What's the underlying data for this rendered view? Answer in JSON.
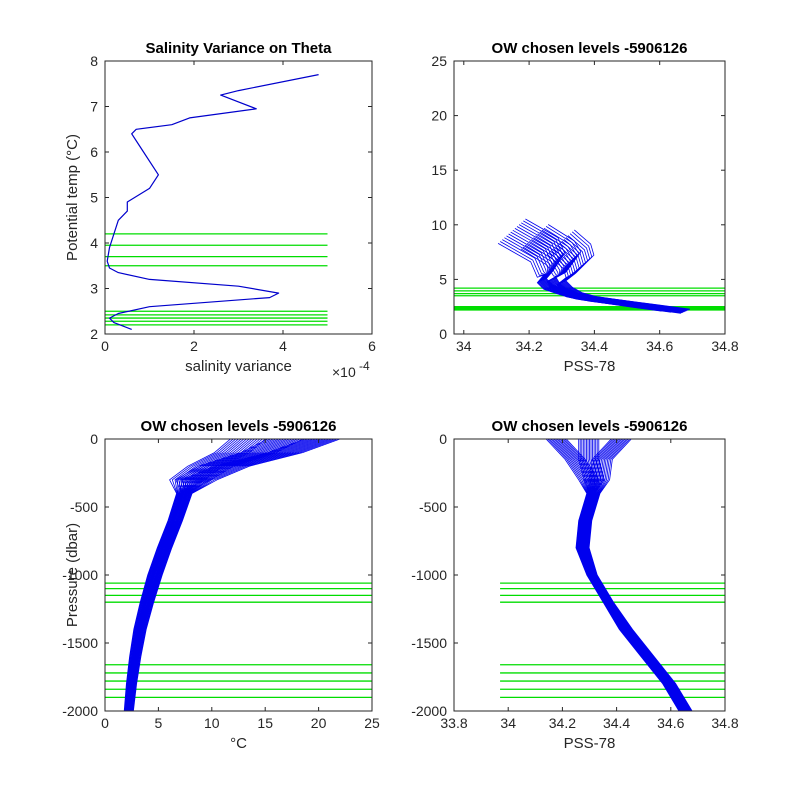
{
  "chart_data": [
    {
      "id": "p1",
      "type": "line",
      "title": "Salinity Variance on Theta",
      "xlabel": "salinity variance",
      "ylabel": "Potential temp (°C)",
      "xlim": [
        0,
        0.0006
      ],
      "ylim": [
        2,
        8
      ],
      "xticks": [
        0,
        0.0002,
        0.0004,
        0.0006
      ],
      "xticklabels": [
        "0",
        "2",
        "4",
        "6"
      ],
      "x_exponent_label": "×10",
      "x_exponent": "-4",
      "yticks": [
        2,
        3,
        4,
        5,
        6,
        7,
        8
      ],
      "series": [
        {
          "color": "#0000cc",
          "x": [
            0.00048,
            0.0003,
            0.00026,
            0.00034,
            0.00019,
            0.00015,
            7e-05,
            6e-05,
            8e-05,
            0.00012,
            0.0001,
            5e-05,
            5e-05,
            3e-05,
            2e-05,
            1e-05,
            5e-06,
            1e-05,
            3e-05,
            0.0001,
            0.0003,
            0.00039,
            0.00037,
            0.0001,
            3e-05,
            1e-05,
            2e-05,
            6e-05
          ],
          "y": [
            7.7,
            7.35,
            7.25,
            6.95,
            6.75,
            6.6,
            6.5,
            6.4,
            6.1,
            5.5,
            5.2,
            4.9,
            4.7,
            4.5,
            4.2,
            3.9,
            3.6,
            3.45,
            3.35,
            3.2,
            3.05,
            2.9,
            2.8,
            2.6,
            2.45,
            2.35,
            2.25,
            2.1
          ]
        }
      ],
      "reference_lines": {
        "orientation": "horizontal",
        "color": "#00dd00",
        "values": [
          4.2,
          3.95,
          3.7,
          3.5,
          2.5,
          2.42,
          2.35,
          2.28,
          2.2
        ],
        "from": 0,
        "to": 0.0005
      }
    },
    {
      "id": "p2",
      "type": "line",
      "title": "OW chosen levels -5906126",
      "xlabel": "PSS-78",
      "ylabel": "",
      "xlim": [
        33.97,
        34.8
      ],
      "ylim": [
        0,
        25
      ],
      "xticks": [
        34,
        34.2,
        34.4,
        34.6,
        34.8
      ],
      "xticklabels": [
        "34",
        "34.2",
        "34.4",
        "34.6",
        "34.8"
      ],
      "yticks": [
        0,
        5,
        10,
        15,
        20,
        25
      ],
      "series": [
        {
          "color": "#0000ee",
          "x": [
            34.65,
            34.55,
            34.45,
            34.38,
            34.33,
            34.3,
            34.28,
            34.27,
            34.3,
            34.32,
            34.3,
            34.22
          ],
          "y": [
            2.2,
            2.6,
            3.0,
            3.3,
            3.6,
            4.0,
            4.5,
            5.0,
            5.5,
            6.5,
            7.5,
            9.0
          ]
        },
        {
          "color": "#0000ee",
          "x": [
            34.68,
            34.58,
            34.48,
            34.4,
            34.35,
            34.32,
            34.3,
            34.33,
            34.36,
            34.35,
            34.3
          ],
          "y": [
            2.1,
            2.5,
            2.9,
            3.2,
            3.6,
            4.1,
            4.7,
            5.4,
            6.2,
            7.2,
            8.5
          ]
        },
        {
          "color": "#0000ee",
          "x": [
            34.62,
            34.52,
            34.43,
            34.36,
            34.31,
            34.26,
            34.24,
            34.26,
            34.27,
            34.25,
            34.15
          ],
          "y": [
            2.3,
            2.7,
            3.1,
            3.4,
            3.8,
            4.3,
            4.9,
            5.6,
            6.4,
            7.8,
            9.5
          ]
        }
      ],
      "reference_lines": {
        "orientation": "horizontal",
        "color": "#00dd00",
        "values": [
          4.2,
          3.95,
          3.7,
          3.5,
          2.5,
          2.42,
          2.35,
          2.28,
          2.2
        ],
        "from": 33.97,
        "to": 34.8
      }
    },
    {
      "id": "p3",
      "type": "line",
      "title": "OW chosen levels -5906126",
      "xlabel": "°C",
      "ylabel": "Pressure (dbar)",
      "xlim": [
        0,
        25
      ],
      "ylim": [
        -2000,
        0
      ],
      "xticks": [
        0,
        5,
        10,
        15,
        20,
        25
      ],
      "xticklabels": [
        "0",
        "5",
        "10",
        "15",
        "20",
        "25"
      ],
      "yticks": [
        -2000,
        -1500,
        -1000,
        -500,
        0
      ],
      "series": [
        {
          "color": "#0000ee",
          "x": [
            2.1,
            2.3,
            2.6,
            3.0,
            3.6,
            4.3,
            5.2,
            6.2,
            7.0,
            7.8,
            9.5,
            12.0,
            13.5
          ],
          "y": [
            -2000,
            -1800,
            -1600,
            -1400,
            -1200,
            -1000,
            -800,
            -600,
            -400,
            -300,
            -200,
            -100,
            0
          ]
        },
        {
          "color": "#0000ee",
          "x": [
            2.4,
            2.7,
            3.1,
            3.6,
            4.3,
            5.1,
            6.0,
            7.0,
            7.9,
            9.0,
            12.0,
            17.0,
            20.5
          ],
          "y": [
            -2000,
            -1800,
            -1600,
            -1400,
            -1200,
            -1000,
            -800,
            -600,
            -400,
            -300,
            -200,
            -100,
            0
          ]
        },
        {
          "color": "#0000ee",
          "x": [
            2.25,
            2.5,
            2.85,
            3.3,
            3.95,
            4.7,
            5.6,
            6.6,
            7.45,
            8.4,
            10.5,
            14.5,
            17.0
          ],
          "y": [
            -2000,
            -1800,
            -1600,
            -1400,
            -1200,
            -1000,
            -800,
            -600,
            -400,
            -300,
            -200,
            -100,
            0
          ]
        }
      ],
      "reference_lines": {
        "orientation": "horizontal",
        "color": "#00dd00",
        "values": [
          -1060,
          -1100,
          -1150,
          -1200,
          -1660,
          -1720,
          -1780,
          -1840,
          -1900
        ],
        "from": 0,
        "to": 25
      }
    },
    {
      "id": "p4",
      "type": "line",
      "title": "OW chosen levels -5906126",
      "xlabel": "PSS-78",
      "ylabel": "",
      "xlim": [
        33.8,
        34.8
      ],
      "ylim": [
        -2000,
        0
      ],
      "xticks": [
        33.8,
        34,
        34.2,
        34.4,
        34.6,
        34.8
      ],
      "xticklabels": [
        "33.8",
        "34",
        "34.2",
        "34.4",
        "34.6",
        "34.8"
      ],
      "yticks": [
        -2000,
        -1500,
        -1000,
        -500,
        0
      ],
      "series": [
        {
          "color": "#0000ee",
          "x": [
            34.64,
            34.58,
            34.5,
            34.42,
            34.36,
            34.3,
            34.26,
            34.27,
            34.3,
            34.3,
            34.25,
            34.18
          ],
          "y": [
            -2000,
            -1800,
            -1600,
            -1400,
            -1200,
            -1000,
            -800,
            -600,
            -400,
            -300,
            -150,
            0
          ]
        },
        {
          "color": "#0000ee",
          "x": [
            34.67,
            34.61,
            34.53,
            34.45,
            34.38,
            34.32,
            34.29,
            34.3,
            34.33,
            34.34,
            34.35,
            34.42
          ],
          "y": [
            -2000,
            -1800,
            -1600,
            -1400,
            -1200,
            -1000,
            -800,
            -600,
            -400,
            -300,
            -150,
            0
          ]
        },
        {
          "color": "#0000ee",
          "x": [
            34.65,
            34.6,
            34.52,
            34.43,
            34.37,
            34.31,
            34.27,
            34.28,
            34.31,
            34.32,
            34.3,
            34.3
          ],
          "y": [
            -2000,
            -1800,
            -1600,
            -1400,
            -1200,
            -1000,
            -800,
            -600,
            -400,
            -300,
            -150,
            0
          ]
        }
      ],
      "reference_lines": {
        "orientation": "horizontal",
        "color": "#00dd00",
        "values": [
          -1060,
          -1100,
          -1150,
          -1200,
          -1660,
          -1720,
          -1780,
          -1840,
          -1900
        ],
        "from": 33.97,
        "to": 34.8
      }
    }
  ]
}
